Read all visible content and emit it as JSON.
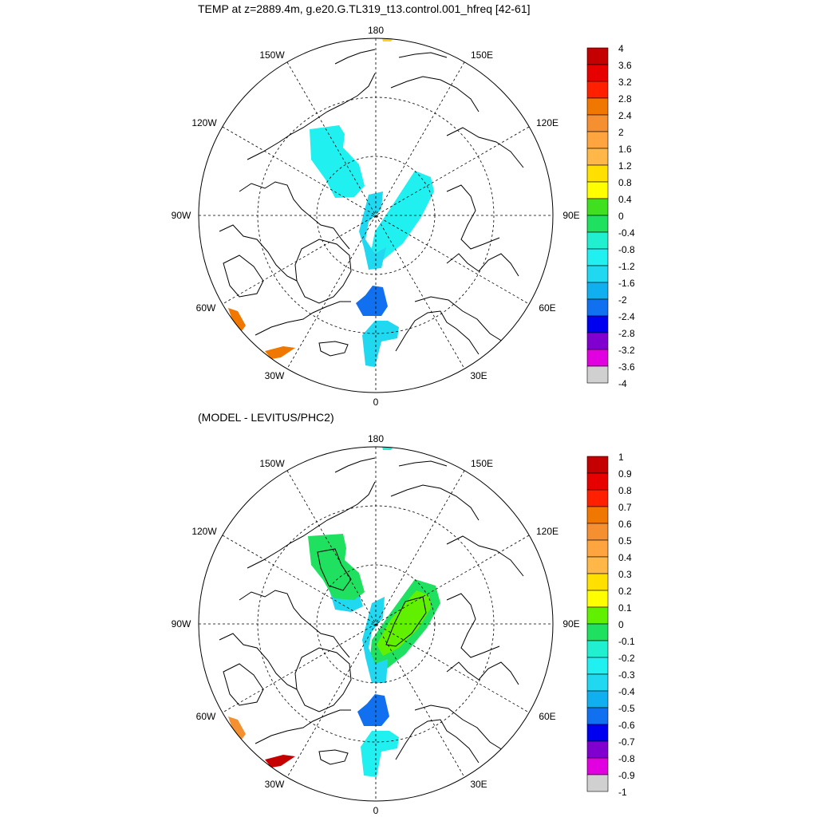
{
  "titles": {
    "top": "TEMP at z=2889.4m, g.e20.G.TL319_t13.control.001_hfreq [42-61]",
    "bottom": "(MODEL - LEVITUS/PHC2)"
  },
  "lon_labels": {
    "deg180": "180",
    "e150": "150E",
    "e120": "120E",
    "e90": "90E",
    "e60": "60E",
    "e30": "30E",
    "deg0": "0",
    "w30": "30W",
    "w60": "60W",
    "w90": "90W",
    "w120": "120W",
    "w150": "150W"
  },
  "colorbar_top": {
    "labels": [
      "4",
      "3.6",
      "3.2",
      "2.8",
      "2.4",
      "2",
      "1.6",
      "1.2",
      "0.8",
      "0.4",
      "0",
      "-0.4",
      "-0.8",
      "-1.2",
      "-1.6",
      "-2",
      "-2.4",
      "-2.8",
      "-3.2",
      "-3.6",
      "-4"
    ],
    "colors": [
      "#c40000",
      "#e60000",
      "#ff2000",
      "#f07800",
      "#f59030",
      "#ffa540",
      "#ffb848",
      "#ffe000",
      "#ffff00",
      "#40e020",
      "#20e060",
      "#20f0d0",
      "#20f0f0",
      "#20d8f0",
      "#10b0f0",
      "#1070f0",
      "#0000f0",
      "#8000d0",
      "#e000e0",
      "#d0d0d0",
      "#707070"
    ]
  },
  "colorbar_bottom": {
    "labels": [
      "1",
      "0.9",
      "0.8",
      "0.7",
      "0.6",
      "0.5",
      "0.4",
      "0.3",
      "0.2",
      "0.1",
      "0",
      "-0.1",
      "-0.2",
      "-0.3",
      "-0.4",
      "-0.5",
      "-0.6",
      "-0.7",
      "-0.8",
      "-0.9",
      "-1"
    ],
    "colors": [
      "#c40000",
      "#e60000",
      "#ff2000",
      "#f07800",
      "#f59030",
      "#ffa540",
      "#ffb848",
      "#ffe000",
      "#ffff00",
      "#60f000",
      "#20e060",
      "#20f0d0",
      "#20f0f0",
      "#20d8f0",
      "#10b0f0",
      "#1070f0",
      "#0000f0",
      "#8000d0",
      "#e000e0",
      "#d0d0d0",
      "#707070"
    ]
  },
  "fields_top": {
    "canada": "#20f0f0",
    "eurasian": "#20f0f0",
    "ridge": "#20d8f0",
    "greenland_sea": "#1070f0",
    "norwegian": "#20d8f0",
    "baffin": "#f07800",
    "labrador": "#f07800",
    "bering": "#ffd020"
  },
  "fields_bottom": {
    "canada": "#20e060",
    "canada_fringe": "#20d8f0",
    "eurasian": "#60f000",
    "eurasian_fringe": "#20e060",
    "ridge": "#20d8f0",
    "greenland_sea": "#1070f0",
    "norwegian": "#20f0f0",
    "baffin": "#f59030",
    "labrador": "#c40000",
    "bering": "#20f0d0"
  }
}
